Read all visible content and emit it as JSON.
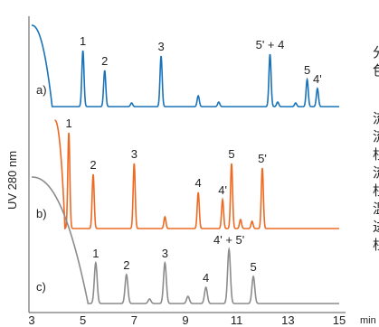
{
  "chart_data": {
    "type": "line",
    "ylabel": "UV 280 nm",
    "x_unit_label": "min",
    "xlim": [
      3,
      15
    ],
    "xticks": [
      "3",
      "5",
      "7",
      "9",
      "11",
      "13",
      "15"
    ],
    "grid": false,
    "series": [
      {
        "name": "a)",
        "color": "#1a73b8",
        "peaks": [
          {
            "label": "1",
            "t": 5.0,
            "h": 62
          },
          {
            "label": "2",
            "t": 5.85,
            "h": 40
          },
          {
            "label": "",
            "t": 6.9,
            "h": 4
          },
          {
            "label": "3",
            "t": 8.05,
            "h": 56
          },
          {
            "label": "",
            "t": 9.5,
            "h": 12
          },
          {
            "label": "",
            "t": 10.3,
            "h": 5
          },
          {
            "label": "5' + 4",
            "t": 12.3,
            "h": 58
          },
          {
            "label": "",
            "t": 12.6,
            "h": 5
          },
          {
            "label": "",
            "t": 13.3,
            "h": 4
          },
          {
            "label": "5",
            "t": 13.75,
            "h": 30
          },
          {
            "label": "4'",
            "t": 14.15,
            "h": 20
          }
        ]
      },
      {
        "name": "b)",
        "color": "#ee6a23",
        "peaks": [
          {
            "label": "1",
            "t": 4.45,
            "h": 106
          },
          {
            "label": "2",
            "t": 5.4,
            "h": 60
          },
          {
            "label": "3",
            "t": 7.0,
            "h": 72
          },
          {
            "label": "",
            "t": 8.2,
            "h": 13
          },
          {
            "label": "4",
            "t": 9.5,
            "h": 40
          },
          {
            "label": "4'",
            "t": 10.45,
            "h": 32
          },
          {
            "label": "5",
            "t": 10.8,
            "h": 72
          },
          {
            "label": "",
            "t": 11.15,
            "h": 10
          },
          {
            "label": "",
            "t": 11.6,
            "h": 8
          },
          {
            "label": "5'",
            "t": 12.0,
            "h": 67
          }
        ]
      },
      {
        "name": "c)",
        "color": "#8c8c8c",
        "peaks": [
          {
            "label": "1",
            "t": 5.5,
            "h": 45
          },
          {
            "label": "2",
            "t": 6.7,
            "h": 32
          },
          {
            "label": "",
            "t": 7.6,
            "h": 5
          },
          {
            "label": "3",
            "t": 8.2,
            "h": 45
          },
          {
            "label": "",
            "t": 9.1,
            "h": 8
          },
          {
            "label": "4",
            "t": 9.8,
            "h": 18
          },
          {
            "label": "4' + 5'",
            "t": 10.7,
            "h": 60
          },
          {
            "label": "5",
            "t": 11.65,
            "h": 30
          }
        ]
      }
    ]
  },
  "side_text": [
    "分",
    "色",
    "流",
    "流",
    "柱",
    "流",
    "柱",
    "温",
    "进",
    "柱"
  ]
}
